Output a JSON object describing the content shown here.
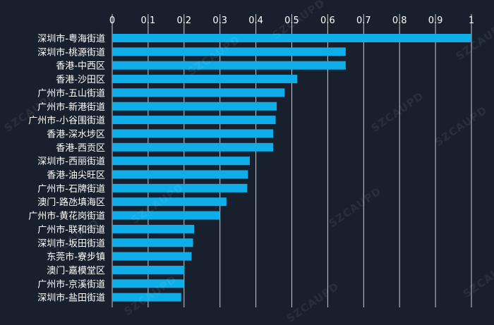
{
  "watermark": "SZCAUPD",
  "colors": {
    "background": "#18202e",
    "bar": "#10aee9",
    "grid": "#c8cdd4",
    "text": "#ffffff"
  },
  "chart_data": {
    "type": "bar",
    "orientation": "horizontal",
    "title": "",
    "xlabel": "",
    "ylabel": "",
    "xlim": [
      0,
      1
    ],
    "xticks": [
      "0",
      "0.1",
      "0.2",
      "0.3",
      "0.4",
      "0.5",
      "0.6",
      "0.7",
      "0.8",
      "0.9",
      "1"
    ],
    "grid": "vertical",
    "categories": [
      "深圳市-粤海街道",
      "深圳市-桃源街道",
      "香港-中西区",
      "香港-沙田区",
      "广州市-五山街道",
      "广州市-新港街道",
      "广州市-小谷围街道",
      "香港-深水埗区",
      "香港-西贡区",
      "深圳市-西丽街道",
      "香港-油尖旺区",
      "广州市-石牌街道",
      "澳门-路氹填海区",
      "广州市-黄花岗街道",
      "广州市-联和街道",
      "深圳市-坂田街道",
      "东莞市-寮步镇",
      "澳门-嘉模堂区",
      "广州市-京溪街道",
      "深圳市-盐田街道"
    ],
    "values": [
      1.0,
      0.65,
      0.65,
      0.515,
      0.48,
      0.458,
      0.455,
      0.448,
      0.448,
      0.383,
      0.378,
      0.376,
      0.318,
      0.3,
      0.228,
      0.225,
      0.221,
      0.201,
      0.2,
      0.192
    ]
  }
}
